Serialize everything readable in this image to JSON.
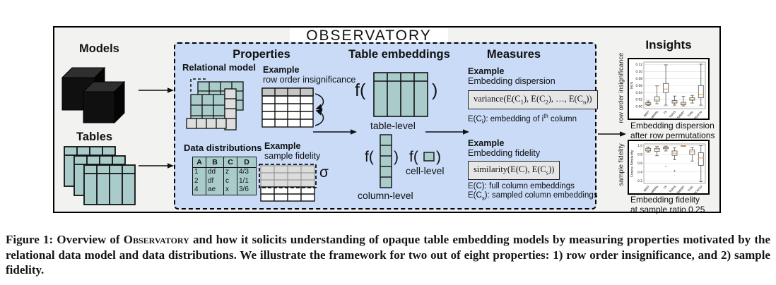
{
  "figure": {
    "title": "OBSERVATORY",
    "left": {
      "models_label": "Models",
      "tables_label": "Tables"
    },
    "properties": {
      "heading": "Properties",
      "relational_model_label": "Relational model",
      "example1_label": "Example",
      "example1_sub": "row order insignificance",
      "data_distributions_label": "Data distributions",
      "data_table": {
        "headers": [
          "A",
          "B",
          "C",
          "D"
        ],
        "rows": [
          [
            "1",
            "dd",
            "z",
            "4/3"
          ],
          [
            "2",
            "df",
            "c",
            "1/1"
          ],
          [
            "4",
            "ae",
            "x",
            "3/6"
          ]
        ]
      },
      "example2_label": "Example",
      "example2_sub": "sample fidelity",
      "sigma": "σ"
    },
    "embeddings": {
      "heading": "Table embeddings",
      "f_open": "f(",
      "f_close": ")",
      "table_level": "table-level",
      "column_level": "column-level",
      "cell_level": "cell-level"
    },
    "measures": {
      "heading": "Measures",
      "example1_label": "Example",
      "example1_sub": "Embedding dispersion",
      "formula1": {
        "p0": "variance(E(C",
        "s0": "1",
        "p1": "), E(C",
        "s1": "2",
        "p2": "), …, E(C",
        "s2": "n",
        "p3": "))"
      },
      "note1": {
        "p0": "E(C",
        "s0": "i",
        "p1": "): embedding of i",
        "sup": "th",
        "p2": " column"
      },
      "example2_label": "Example",
      "example2_sub": "Embedding fidelity",
      "formula2": {
        "p0": "similarity(E(C), E(C",
        "s0": "s",
        "p1": "))"
      },
      "note2a": "E(C): full column embeddings",
      "note2b": {
        "p0": "E(C",
        "s0": "s",
        "p1": "): sampled column embeddings"
      }
    },
    "insights": {
      "heading": "Insights",
      "plot1_caption_line1": "Embedding dispersion",
      "plot1_caption_line2": "after row permutations",
      "plot2_caption_line1": "Embedding fidelity",
      "plot2_caption_line2": "at sample ratio 0.25"
    }
  },
  "caption": {
    "part1": "Figure 1: Overview of ",
    "smallcaps": "Observatory",
    "part2": " and how it solicits understanding of opaque table embedding models by measuring properties motivated by the relational data model and data distributions. We illustrate the framework for two out of eight properties: 1) row order insignificance, and 2) sample fidelity."
  },
  "colors": {
    "table_teal": "#a9ccca",
    "panel_blue": "#c9dbf7",
    "median_orange": "#e39b3b",
    "figure_bg": "#f2f2f0"
  },
  "chart_data": [
    {
      "type": "boxplot",
      "title": "Embedding dispersion after row permutations",
      "ylabel": "MCV",
      "outer_label": "row order insignificance",
      "categories": [
        "BERT",
        "RoBERTa",
        "T5",
        "TAPAS",
        "TaBERT",
        "TURL",
        "DODUO"
      ],
      "ylim": [
        -0.006,
        0.127
      ],
      "yticks": [
        0.0,
        0.02,
        0.04,
        0.06,
        0.08,
        0.1,
        0.12
      ],
      "ytick_labels": [
        "0.00",
        "0.02",
        "0.04",
        "0.06",
        "0.08",
        "0.10",
        "0.12"
      ],
      "grid": true,
      "series": [
        {
          "name": "BERT",
          "whislo": 0.003,
          "q1": 0.005,
          "med": 0.008,
          "q3": 0.011,
          "whishi": 0.016,
          "outliers": []
        },
        {
          "name": "RoBERTa",
          "whislo": 0.008,
          "q1": 0.016,
          "med": 0.021,
          "q3": 0.028,
          "whishi": 0.059,
          "outliers": []
        },
        {
          "name": "T5",
          "whislo": 0.004,
          "q1": 0.04,
          "med": 0.05,
          "q3": 0.066,
          "whishi": 0.119,
          "outliers": []
        },
        {
          "name": "TAPAS",
          "whislo": 0.004,
          "q1": 0.01,
          "med": 0.013,
          "q3": 0.017,
          "whishi": 0.03,
          "outliers": []
        },
        {
          "name": "TaBERT",
          "whislo": 0.002,
          "q1": 0.005,
          "med": 0.008,
          "q3": 0.012,
          "whishi": 0.029,
          "outliers": []
        },
        {
          "name": "TURL",
          "whislo": 0.01,
          "q1": 0.018,
          "med": 0.021,
          "q3": 0.025,
          "whishi": 0.032,
          "outliers": []
        },
        {
          "name": "DODUO",
          "whislo": 0.004,
          "q1": 0.025,
          "med": 0.035,
          "q3": 0.06,
          "whishi": 0.121,
          "outliers": []
        }
      ]
    },
    {
      "type": "boxplot",
      "title": "Embedding fidelity at sample ratio 0.25",
      "ylabel": "Cosine Similarity",
      "outer_label": "sample fidelity",
      "categories": [
        "BERT",
        "RoBERTa",
        "T5",
        "TAPAS",
        "TaBERT",
        "TURL",
        "DODUO"
      ],
      "ylim": [
        0.14,
        1.04
      ],
      "yticks": [
        0.2,
        0.4,
        0.6,
        0.8,
        1.0
      ],
      "ytick_labels": [
        "0.2",
        "0.4",
        "0.6",
        "0.8",
        "1.0"
      ],
      "grid": true,
      "series": [
        {
          "name": "BERT",
          "whislo": 0.85,
          "q1": 0.88,
          "med": 0.9,
          "q3": 0.94,
          "whishi": 0.97,
          "outliers": []
        },
        {
          "name": "RoBERTa",
          "whislo": 0.77,
          "q1": 0.87,
          "med": 0.91,
          "q3": 0.94,
          "whishi": 0.98,
          "outliers": []
        },
        {
          "name": "T5",
          "whislo": 0.88,
          "q1": 0.93,
          "med": 0.95,
          "q3": 0.97,
          "whishi": 0.99,
          "outliers": [
            0.53
          ]
        },
        {
          "name": "TAPAS",
          "whislo": 0.68,
          "q1": 0.78,
          "med": 0.83,
          "q3": 0.88,
          "whishi": 0.95,
          "outliers": [
            0.42,
            0.43
          ]
        },
        {
          "name": "TaBERT",
          "whislo": 0.985,
          "q1": 0.99,
          "med": 0.995,
          "q3": 1.0,
          "whishi": 1.0,
          "outliers": []
        },
        {
          "name": "TURL",
          "whislo": 0.65,
          "q1": 0.8,
          "med": 0.86,
          "q3": 0.9,
          "whishi": 0.95,
          "outliers": []
        },
        {
          "name": "DODUO",
          "whislo": 0.18,
          "q1": 0.55,
          "med": 0.72,
          "q3": 0.84,
          "whishi": 1.0,
          "outliers": []
        }
      ]
    }
  ]
}
